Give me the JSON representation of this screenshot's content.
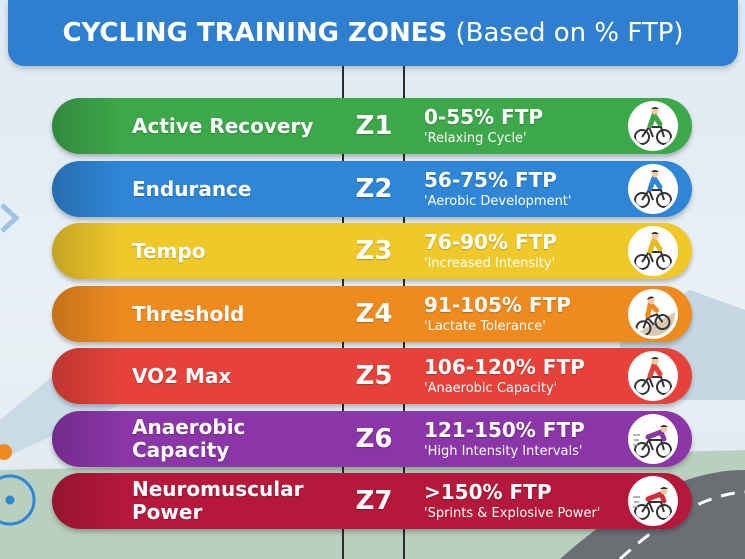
{
  "header": {
    "title_strong": "CYCLING TRAINING ZONES",
    "title_light": " (Based on % FTP)"
  },
  "colors": {
    "banner": "#2f7fd1"
  },
  "zones": [
    {
      "name": "Active Recovery",
      "code": "Z1",
      "percent": "0-55% FTP",
      "description": "'Relaxing Cycle'",
      "color": "#3da84a",
      "jersey": "#3da84a",
      "icon": "cyclist-icon"
    },
    {
      "name": "Endurance",
      "code": "Z2",
      "percent": "56-75% FTP",
      "description": "'Aerobic Development'",
      "color": "#2f86d6",
      "jersey": "#2f86d6",
      "icon": "cyclist-icon"
    },
    {
      "name": "Tempo",
      "code": "Z3",
      "percent": "76-90% FTP",
      "description": "'Increased Intensity'",
      "color": "#efc82a",
      "jersey": "#e9b81c",
      "icon": "cyclist-icon"
    },
    {
      "name": "Threshold",
      "code": "Z4",
      "percent": "91-105% FTP",
      "description": "'Lactate Tolerance'",
      "color": "#ef8a1f",
      "jersey": "#ef8a1f",
      "icon": "climbing-cyclist-icon"
    },
    {
      "name": "VO2 Max",
      "code": "Z5",
      "percent": "106-120% FTP",
      "description": "'Anaerobic Capacity'",
      "color": "#e6423a",
      "jersey": "#e6423a",
      "icon": "cyclist-icon"
    },
    {
      "name": "Anaerobic Capacity",
      "code": "Z6",
      "percent": "121-150% FTP",
      "description": "'High Intensity Intervals'",
      "color": "#8a35a8",
      "jersey": "#8a35a8",
      "icon": "sprinting-cyclist-icon"
    },
    {
      "name": "Neuromuscular Power",
      "code": "Z7",
      "percent": ">150% FTP",
      "description": "'Sprints & Explosive Power'",
      "color": "#b5183a",
      "jersey": "#d62b3d",
      "icon": "sprinting-cyclist-icon"
    }
  ]
}
